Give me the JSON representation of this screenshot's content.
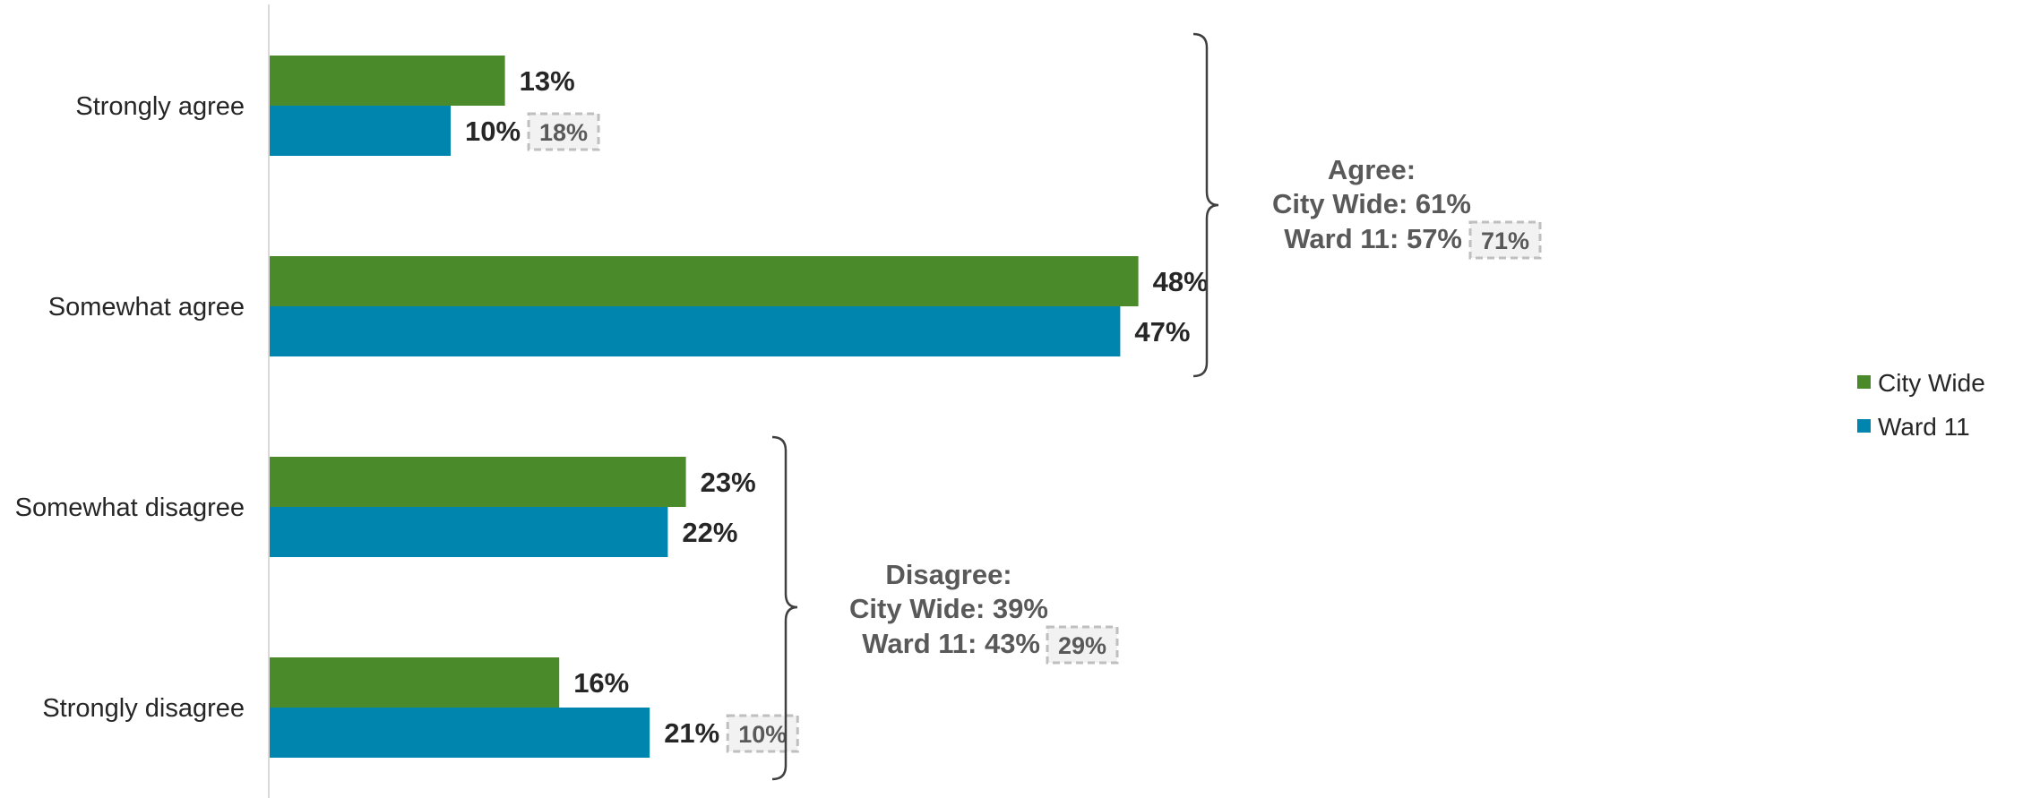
{
  "chart_data": {
    "type": "bar",
    "orientation": "horizontal",
    "categories": [
      "Strongly agree",
      "Somewhat agree",
      "Somewhat disagree",
      "Strongly disagree"
    ],
    "series": [
      {
        "name": "City Wide",
        "values": [
          13,
          48,
          23,
          16
        ],
        "labels": [
          "13%",
          "48%",
          "23%",
          "16%"
        ],
        "color": "#4a8a2a"
      },
      {
        "name": "Ward 11",
        "values": [
          10,
          47,
          22,
          21
        ],
        "labels": [
          "10%",
          "47%",
          "22%",
          "21%"
        ],
        "color": "#0086ae"
      }
    ],
    "comparison_labels": [
      {
        "category": "Strongly agree",
        "series": "Ward 11",
        "value": "18%"
      },
      {
        "category": "Strongly disagree",
        "series": "Ward 11",
        "value": "10%"
      }
    ],
    "xlim": [
      0,
      50
    ],
    "grid": false,
    "legend": "right",
    "summaries": [
      {
        "group": "agree",
        "heading": "Agree:",
        "city_wide": "City Wide: 61%",
        "ward": "Ward 11: 57%",
        "comparison": "71%"
      },
      {
        "group": "disagree",
        "heading": "Disagree:",
        "city_wide": "City Wide: 39%",
        "ward": "Ward 11: 43%",
        "comparison": "29%"
      }
    ]
  }
}
